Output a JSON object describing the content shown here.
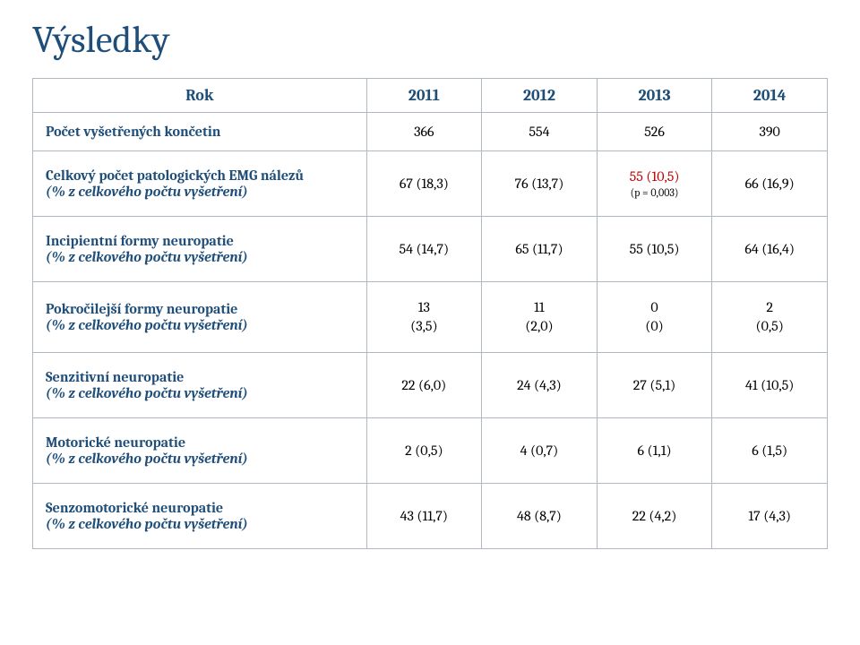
{
  "title": "Výsledky",
  "table": {
    "header": {
      "label": "Rok",
      "cols": [
        "2011",
        "2012",
        "2013",
        "2014"
      ]
    },
    "rows": [
      {
        "label_main": "Počet vyšetřených končetin",
        "label_sub": "",
        "tall": false,
        "cells": [
          {
            "text": "366"
          },
          {
            "text": "554"
          },
          {
            "text": "526"
          },
          {
            "text": "390"
          }
        ]
      },
      {
        "label_main": "Celkový počet patologických EMG nálezů",
        "label_sub": "(% z celkového počtu vyšetření)",
        "tall": true,
        "cells": [
          {
            "text": "67 (18,3)"
          },
          {
            "text": "76 (13,7)"
          },
          {
            "text": "55 (10,5)",
            "highlight": true,
            "note": "(p = 0,003)"
          },
          {
            "text": "66 (16,9)"
          }
        ]
      },
      {
        "label_main": "Incipientní formy neuropatie",
        "label_sub": "(% z celkového počtu vyšetření)",
        "tall": true,
        "cells": [
          {
            "text": "54 (14,7)"
          },
          {
            "text": "65 (11,7)"
          },
          {
            "text": "55 (10,5)"
          },
          {
            "text": "64 (16,4)"
          }
        ]
      },
      {
        "label_main": "Pokročilejší formy neuropatie",
        "label_sub": "(% z celkového počtu vyšetření)",
        "tall": true,
        "cells": [
          {
            "stack": [
              "13",
              "(3,5)"
            ]
          },
          {
            "stack": [
              "11",
              "(2,0)"
            ]
          },
          {
            "stack": [
              "0",
              "(0)"
            ]
          },
          {
            "stack": [
              "2",
              "(0,5)"
            ]
          }
        ]
      },
      {
        "label_main": "Senzitivní neuropatie",
        "label_sub": "(% z celkového počtu vyšetření)",
        "tall": true,
        "cells": [
          {
            "text": "22 (6,0)"
          },
          {
            "text": "24 (4,3)"
          },
          {
            "text": "27 (5,1)"
          },
          {
            "text": "41 (10,5)"
          }
        ]
      },
      {
        "label_main": "Motorické neuropatie",
        "label_sub": "(% z celkového počtu vyšetření)",
        "tall": true,
        "cells": [
          {
            "text": "2 (0,5)"
          },
          {
            "text": "4 (0,7)"
          },
          {
            "text": "6 (1,1)"
          },
          {
            "text": "6 (1,5)"
          }
        ]
      },
      {
        "label_main": "Senzomotorické neuropatie",
        "label_sub": "(% z celkového počtu vyšetření)",
        "tall": true,
        "cells": [
          {
            "text": "43 (11,7)"
          },
          {
            "text": "48 (8,7)"
          },
          {
            "text": "22 (4,2)"
          },
          {
            "text": "17 (4,3)"
          }
        ]
      }
    ]
  },
  "colors": {
    "title": "#1f4e79",
    "label": "#1f4e79",
    "value": "#000000",
    "highlight": "#c00000",
    "border": "#b0b8c4"
  }
}
